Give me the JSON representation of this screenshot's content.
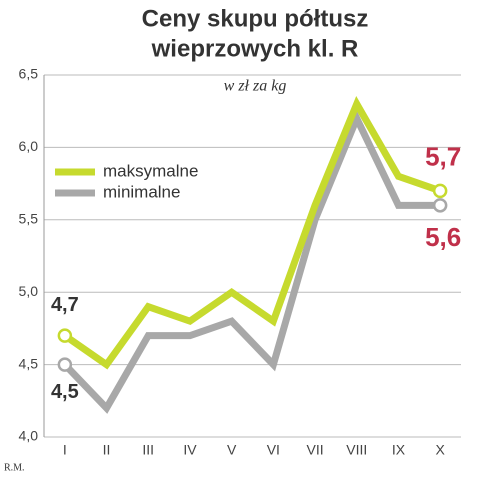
{
  "chart_data": {
    "type": "line",
    "title": [
      "Ceny skupu półtusz",
      "wieprzowych kl. R"
    ],
    "subtitle": "w zł za kg",
    "source": "R.M.",
    "categories": [
      "I",
      "II",
      "III",
      "IV",
      "V",
      "VI",
      "VII",
      "VIII",
      "IX",
      "X"
    ],
    "series": [
      {
        "name": "maksymalne",
        "color": "#c6da2e",
        "values": [
          4.7,
          4.5,
          4.9,
          4.8,
          5.0,
          4.8,
          5.6,
          6.3,
          5.8,
          5.7
        ],
        "value_labels": [
          "4,7",
          null,
          null,
          null,
          null,
          null,
          null,
          null,
          null,
          "5,7"
        ]
      },
      {
        "name": "minimalne",
        "color": "#a8a8a8",
        "values": [
          4.5,
          4.2,
          4.7,
          4.7,
          4.8,
          4.5,
          5.5,
          6.2,
          5.6,
          5.6
        ],
        "value_labels": [
          "4,5",
          null,
          null,
          null,
          null,
          null,
          null,
          null,
          null,
          "5,6"
        ]
      }
    ],
    "ylim": [
      4.0,
      6.5
    ],
    "yticks": [
      {
        "value": 4.0,
        "label": "4,0"
      },
      {
        "value": 4.5,
        "label": "4,5"
      },
      {
        "value": 5.0,
        "label": "5,0"
      },
      {
        "value": 5.5,
        "label": "5,5"
      },
      {
        "value": 6.0,
        "label": "6,0"
      },
      {
        "value": 6.5,
        "label": "6,5"
      }
    ],
    "grid": true
  }
}
